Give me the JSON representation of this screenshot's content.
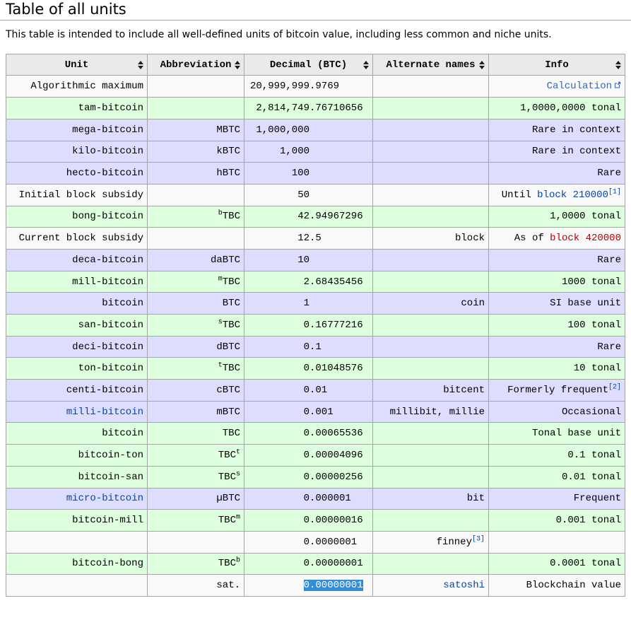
{
  "page": {
    "title": "Table of all units",
    "subtitle": "This table is intended to include all well-defined units of bitcoin value, including less common and niche units."
  },
  "colors": {
    "row_white": "#f9f9f9",
    "row_green": "#ddffdd",
    "row_purple": "#ddddff",
    "header_bg": "#eaeaea",
    "border": "#a5a5a5",
    "link": "#0645ad",
    "red_link": "#ba0000",
    "external_link": "#3366bb",
    "selection_bg": "#308ddc",
    "selection_text": "#ffffff"
  },
  "table": {
    "columns": [
      {
        "id": "unit",
        "label": "Unit",
        "sortable": true,
        "sort_icon": "sort-arrows"
      },
      {
        "id": "abbreviation",
        "label": "Abbreviation",
        "sortable": true,
        "sort_icon": "sort-arrows"
      },
      {
        "id": "decimal-btc",
        "label": "Decimal (BTC)",
        "sortable": true,
        "sort_icon": "sort-arrows"
      },
      {
        "id": "alternate-names",
        "label": "Alternate names",
        "sortable": true,
        "sort_icon": "sort-arrows"
      },
      {
        "id": "info",
        "label": "Info",
        "sortable": true,
        "sort_icon": "sort-arrows"
      }
    ],
    "rows": [
      {
        "bg": "white",
        "unit": [
          {
            "t": "Algorithmic maximum",
            "k": "plain"
          }
        ],
        "abbr": [],
        "dec": {
          "i": "20,999,999",
          "f": ".9769"
        },
        "alt": [],
        "info": [
          {
            "t": "Calculation",
            "k": "extlink"
          }
        ]
      },
      {
        "bg": "green",
        "unit": [
          {
            "t": "tam-bitcoin",
            "k": "plain"
          }
        ],
        "abbr": [],
        "dec": {
          "i": "2,814,749",
          "f": ".76710656"
        },
        "alt": [],
        "info": [
          {
            "t": "1,0000,0000 tonal",
            "k": "plain"
          }
        ]
      },
      {
        "bg": "purple",
        "unit": [
          {
            "t": "mega-bitcoin",
            "k": "plain"
          }
        ],
        "abbr": [
          {
            "t": "MBTC",
            "k": "plain"
          }
        ],
        "dec": {
          "i": "1,000,000",
          "f": ""
        },
        "alt": [],
        "info": [
          {
            "t": "Rare in context",
            "k": "plain"
          }
        ]
      },
      {
        "bg": "purple",
        "unit": [
          {
            "t": "kilo-bitcoin",
            "k": "plain"
          }
        ],
        "abbr": [
          {
            "t": "kBTC",
            "k": "plain"
          }
        ],
        "dec": {
          "i": "1,000",
          "f": ""
        },
        "alt": [],
        "info": [
          {
            "t": "Rare in context",
            "k": "plain"
          }
        ]
      },
      {
        "bg": "purple",
        "unit": [
          {
            "t": "hecto-bitcoin",
            "k": "plain"
          }
        ],
        "abbr": [
          {
            "t": "hBTC",
            "k": "plain"
          }
        ],
        "dec": {
          "i": "100",
          "f": ""
        },
        "alt": [],
        "info": [
          {
            "t": "Rare",
            "k": "plain"
          }
        ]
      },
      {
        "bg": "white",
        "unit": [
          {
            "t": "Initial block subsidy",
            "k": "plain"
          }
        ],
        "abbr": [],
        "dec": {
          "i": "50",
          "f": ""
        },
        "alt": [],
        "info": [
          {
            "t": "Until ",
            "k": "plain"
          },
          {
            "t": "block 210000",
            "k": "link"
          },
          {
            "t": "[1]",
            "k": "ref"
          }
        ]
      },
      {
        "bg": "green",
        "unit": [
          {
            "t": "bong-bitcoin",
            "k": "plain"
          }
        ],
        "abbr": [
          {
            "t": "b",
            "k": "sup"
          },
          {
            "t": "TBC",
            "k": "plain"
          }
        ],
        "dec": {
          "i": "42",
          "f": ".94967296"
        },
        "alt": [],
        "info": [
          {
            "t": "1,0000 tonal",
            "k": "plain"
          }
        ]
      },
      {
        "bg": "white",
        "unit": [
          {
            "t": "Current block subsidy",
            "k": "plain"
          }
        ],
        "abbr": [],
        "dec": {
          "i": "12",
          "f": ".5"
        },
        "alt": [
          {
            "t": "block",
            "k": "plain"
          }
        ],
        "info": [
          {
            "t": "As of ",
            "k": "plain"
          },
          {
            "t": "block 420000",
            "k": "redlink"
          }
        ]
      },
      {
        "bg": "purple",
        "unit": [
          {
            "t": "deca-bitcoin",
            "k": "plain"
          }
        ],
        "abbr": [
          {
            "t": "daBTC",
            "k": "plain"
          }
        ],
        "dec": {
          "i": "10",
          "f": ""
        },
        "alt": [],
        "info": [
          {
            "t": "Rare",
            "k": "plain"
          }
        ]
      },
      {
        "bg": "green",
        "unit": [
          {
            "t": "mill-bitcoin",
            "k": "plain"
          }
        ],
        "abbr": [
          {
            "t": "m",
            "k": "sup"
          },
          {
            "t": "TBC",
            "k": "plain"
          }
        ],
        "dec": {
          "i": "2",
          "f": ".68435456"
        },
        "alt": [],
        "info": [
          {
            "t": "1000 tonal",
            "k": "plain"
          }
        ]
      },
      {
        "bg": "purple",
        "unit": [
          {
            "t": "bitcoin",
            "k": "plain"
          }
        ],
        "abbr": [
          {
            "t": "BTC",
            "k": "plain"
          }
        ],
        "dec": {
          "i": "1",
          "f": ""
        },
        "alt": [
          {
            "t": "coin",
            "k": "plain"
          }
        ],
        "info": [
          {
            "t": "SI base unit",
            "k": "plain"
          }
        ]
      },
      {
        "bg": "green",
        "unit": [
          {
            "t": "san-bitcoin",
            "k": "plain"
          }
        ],
        "abbr": [
          {
            "t": "s",
            "k": "sup"
          },
          {
            "t": "TBC",
            "k": "plain"
          }
        ],
        "dec": {
          "i": "0",
          "f": ".16777216"
        },
        "alt": [],
        "info": [
          {
            "t": "100 tonal",
            "k": "plain"
          }
        ]
      },
      {
        "bg": "purple",
        "unit": [
          {
            "t": "deci-bitcoin",
            "k": "plain"
          }
        ],
        "abbr": [
          {
            "t": "dBTC",
            "k": "plain"
          }
        ],
        "dec": {
          "i": "0",
          "f": ".1"
        },
        "alt": [],
        "info": [
          {
            "t": "Rare",
            "k": "plain"
          }
        ]
      },
      {
        "bg": "green",
        "unit": [
          {
            "t": "ton-bitcoin",
            "k": "plain"
          }
        ],
        "abbr": [
          {
            "t": "t",
            "k": "sup"
          },
          {
            "t": "TBC",
            "k": "plain"
          }
        ],
        "dec": {
          "i": "0",
          "f": ".01048576"
        },
        "alt": [],
        "info": [
          {
            "t": "10 tonal",
            "k": "plain"
          }
        ]
      },
      {
        "bg": "purple",
        "unit": [
          {
            "t": "centi-bitcoin",
            "k": "plain"
          }
        ],
        "abbr": [
          {
            "t": "cBTC",
            "k": "plain"
          }
        ],
        "dec": {
          "i": "0",
          "f": ".01"
        },
        "alt": [
          {
            "t": "bitcent",
            "k": "plain"
          }
        ],
        "info": [
          {
            "t": "Formerly frequent",
            "k": "plain"
          },
          {
            "t": "[2]",
            "k": "ref"
          }
        ]
      },
      {
        "bg": "purple",
        "unit": [
          {
            "t": "milli-bitcoin",
            "k": "link"
          }
        ],
        "abbr": [
          {
            "t": "mBTC",
            "k": "plain"
          }
        ],
        "dec": {
          "i": "0",
          "f": ".001"
        },
        "alt": [
          {
            "t": "millibit, millie",
            "k": "plain"
          }
        ],
        "info": [
          {
            "t": "Occasional",
            "k": "plain"
          }
        ]
      },
      {
        "bg": "green",
        "unit": [
          {
            "t": "bitcoin",
            "k": "plain"
          }
        ],
        "abbr": [
          {
            "t": "TBC",
            "k": "plain"
          }
        ],
        "dec": {
          "i": "0",
          "f": ".00065536"
        },
        "alt": [],
        "info": [
          {
            "t": "Tonal base unit",
            "k": "plain"
          }
        ]
      },
      {
        "bg": "green",
        "unit": [
          {
            "t": "bitcoin-ton",
            "k": "plain"
          }
        ],
        "abbr": [
          {
            "t": "TBC",
            "k": "plain"
          },
          {
            "t": "t",
            "k": "sup"
          }
        ],
        "dec": {
          "i": "0",
          "f": ".00004096"
        },
        "alt": [],
        "info": [
          {
            "t": "0.1 tonal",
            "k": "plain"
          }
        ]
      },
      {
        "bg": "green",
        "unit": [
          {
            "t": "bitcoin-san",
            "k": "plain"
          }
        ],
        "abbr": [
          {
            "t": "TBC",
            "k": "plain"
          },
          {
            "t": "s",
            "k": "sup"
          }
        ],
        "dec": {
          "i": "0",
          "f": ".00000256"
        },
        "alt": [],
        "info": [
          {
            "t": "0.01 tonal",
            "k": "plain"
          }
        ]
      },
      {
        "bg": "purple",
        "unit": [
          {
            "t": "micro-bitcoin",
            "k": "link"
          }
        ],
        "abbr": [
          {
            "t": "µBTC",
            "k": "plain"
          }
        ],
        "dec": {
          "i": "0",
          "f": ".000001"
        },
        "alt": [
          {
            "t": "bit",
            "k": "plain"
          }
        ],
        "info": [
          {
            "t": "Frequent",
            "k": "plain"
          }
        ]
      },
      {
        "bg": "green",
        "unit": [
          {
            "t": "bitcoin-mill",
            "k": "plain"
          }
        ],
        "abbr": [
          {
            "t": "TBC",
            "k": "plain"
          },
          {
            "t": "m",
            "k": "sup"
          }
        ],
        "dec": {
          "i": "0",
          "f": ".00000016"
        },
        "alt": [],
        "info": [
          {
            "t": "0.001 tonal",
            "k": "plain"
          }
        ]
      },
      {
        "bg": "white",
        "unit": [],
        "abbr": [],
        "dec": {
          "i": "0",
          "f": ".0000001"
        },
        "alt": [
          {
            "t": "finney",
            "k": "plain"
          },
          {
            "t": "[3]",
            "k": "ref"
          }
        ],
        "info": []
      },
      {
        "bg": "green",
        "unit": [
          {
            "t": "bitcoin-bong",
            "k": "plain"
          }
        ],
        "abbr": [
          {
            "t": "TBC",
            "k": "plain"
          },
          {
            "t": "b",
            "k": "sup"
          }
        ],
        "dec": {
          "i": "0",
          "f": ".00000001"
        },
        "alt": [],
        "info": [
          {
            "t": "0.0001 tonal",
            "k": "plain"
          }
        ]
      },
      {
        "bg": "white",
        "unit": [],
        "abbr": [
          {
            "t": "sat.",
            "k": "plain"
          }
        ],
        "dec": {
          "i": "0",
          "f": ".00000001",
          "sel": true
        },
        "alt": [
          {
            "t": "satoshi",
            "k": "link"
          }
        ],
        "info": [
          {
            "t": "Blockchain value",
            "k": "plain"
          }
        ]
      }
    ]
  }
}
